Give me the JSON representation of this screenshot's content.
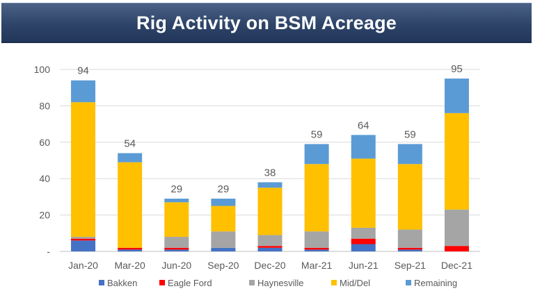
{
  "title": "Rig Activity on BSM Acreage",
  "chart_data": {
    "type": "bar",
    "stacked": true,
    "categories": [
      "Jan-20",
      "Mar-20",
      "Jun-20",
      "Sep-20",
      "Dec-20",
      "Mar-21",
      "Jun-21",
      "Sep-21",
      "Dec-21"
    ],
    "series": [
      {
        "name": "Bakken",
        "color": "#4472c4",
        "values": [
          6,
          1,
          1,
          2,
          2,
          1,
          4,
          1,
          0
        ]
      },
      {
        "name": "Eagle Ford",
        "color": "#ff0000",
        "values": [
          1,
          1,
          1,
          0,
          1,
          1,
          3,
          1,
          3
        ]
      },
      {
        "name": "Haynesville",
        "color": "#a5a5a5",
        "values": [
          1,
          0,
          6,
          9,
          6,
          9,
          6,
          10,
          20
        ]
      },
      {
        "name": "Mid/Del",
        "color": "#ffc000",
        "values": [
          74,
          47,
          19,
          14,
          26,
          37,
          38,
          36,
          53
        ]
      },
      {
        "name": "Remaining",
        "color": "#5b9bd5",
        "values": [
          12,
          5,
          2,
          4,
          3,
          11,
          13,
          11,
          19
        ]
      }
    ],
    "totals": [
      "94",
      "54",
      "29",
      "29",
      "38",
      "59",
      "64",
      "59",
      "95"
    ],
    "y_ticks": [
      "-",
      "20",
      "40",
      "60",
      "80",
      "100"
    ],
    "ylim": [
      0,
      100
    ],
    "grid": true,
    "legend_position": "bottom"
  }
}
